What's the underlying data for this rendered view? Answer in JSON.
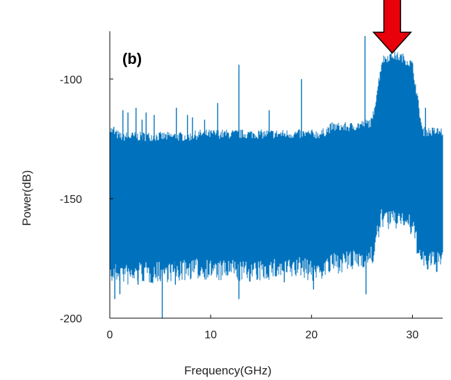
{
  "chart_data": {
    "type": "line",
    "title": "",
    "panel_label": "(b)",
    "xlabel": "Frequency(GHz)",
    "ylabel": "Power(dB)",
    "xlim": [
      0,
      33
    ],
    "ylim": [
      -200,
      -80
    ],
    "xticks": [
      0,
      10,
      20,
      30
    ],
    "yticks": [
      -100,
      -150,
      -200
    ],
    "series": [
      {
        "color": "#0072BD",
        "band_x": [
          0,
          1,
          2,
          3,
          4,
          5,
          6,
          7,
          8,
          9,
          10,
          11,
          12,
          13,
          14,
          15,
          16,
          17,
          18,
          19,
          20,
          21,
          22,
          23,
          24,
          25,
          26,
          27,
          28,
          29,
          30,
          31,
          32,
          33
        ],
        "band_upper": [
          -123,
          -126,
          -126,
          -126,
          -126,
          -126,
          -126,
          -126,
          -126,
          -125,
          -125,
          -125,
          -125,
          -125,
          -125,
          -125,
          -125,
          -125,
          -125,
          -125,
          -125,
          -125,
          -122,
          -122,
          -122,
          -121,
          -120,
          -94,
          -92,
          -93,
          -96,
          -124,
          -124,
          -124
        ],
        "band_lower": [
          -178,
          -176,
          -178,
          -176,
          -177,
          -176,
          -176,
          -176,
          -175,
          -175,
          -175,
          -176,
          -175,
          -176,
          -176,
          -176,
          -175,
          -175,
          -175,
          -174,
          -176,
          -175,
          -173,
          -172,
          -172,
          -170,
          -170,
          -153,
          -155,
          -153,
          -158,
          -172,
          -172,
          -172
        ],
        "spikes": [
          {
            "x": 0.4,
            "y": -120
          },
          {
            "x": 1.3,
            "y": -113
          },
          {
            "x": 1.8,
            "y": -114
          },
          {
            "x": 2.6,
            "y": -112
          },
          {
            "x": 3.2,
            "y": -117
          },
          {
            "x": 3.6,
            "y": -114
          },
          {
            "x": 4.4,
            "y": -115
          },
          {
            "x": 6.6,
            "y": -112
          },
          {
            "x": 7.7,
            "y": -115
          },
          {
            "x": 8.2,
            "y": -116
          },
          {
            "x": 9.4,
            "y": -117
          },
          {
            "x": 10.7,
            "y": -110
          },
          {
            "x": 12.8,
            "y": -94
          },
          {
            "x": 15.8,
            "y": -113
          },
          {
            "x": 19.0,
            "y": -100
          },
          {
            "x": 25.3,
            "y": -82
          },
          {
            "x": 31.3,
            "y": -112
          }
        ],
        "dips": [
          {
            "x": 0.5,
            "y": -192
          },
          {
            "x": 1.0,
            "y": -190
          },
          {
            "x": 2.8,
            "y": -186
          },
          {
            "x": 5.2,
            "y": -201
          },
          {
            "x": 6.5,
            "y": -186
          },
          {
            "x": 12.8,
            "y": -192
          },
          {
            "x": 14.6,
            "y": -184
          },
          {
            "x": 17.3,
            "y": -185
          },
          {
            "x": 20.2,
            "y": -188
          },
          {
            "x": 25.4,
            "y": -190
          }
        ]
      }
    ],
    "annotation": {
      "type": "arrow",
      "color": "#E8000B",
      "points_to_x": 28,
      "points_to_y": -90
    }
  }
}
